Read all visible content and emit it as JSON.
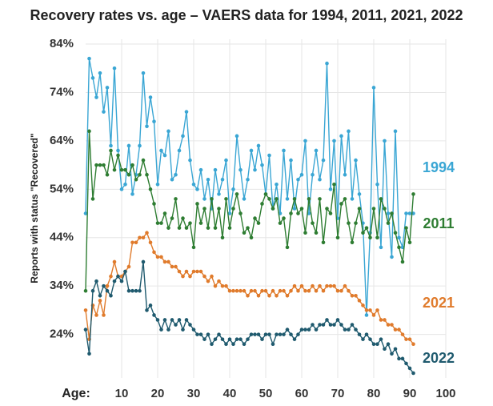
{
  "chart_data": {
    "type": "line",
    "title": "Recovery rates vs. age – VAERS data for 1994, 2011, 2021, 2022",
    "y_label": "Reports with status \"Recovered\"",
    "x_label": "Age:",
    "x": [
      0,
      1,
      2,
      3,
      4,
      5,
      6,
      7,
      8,
      9,
      10,
      11,
      12,
      13,
      14,
      15,
      16,
      17,
      18,
      19,
      20,
      21,
      22,
      23,
      24,
      25,
      26,
      27,
      28,
      29,
      30,
      31,
      32,
      33,
      34,
      35,
      36,
      37,
      38,
      39,
      40,
      41,
      42,
      43,
      44,
      45,
      46,
      47,
      48,
      49,
      50,
      51,
      52,
      53,
      54,
      55,
      56,
      57,
      58,
      59,
      60,
      61,
      62,
      63,
      64,
      65,
      66,
      67,
      68,
      69,
      70,
      71,
      72,
      73,
      74,
      75,
      76,
      77,
      78,
      79,
      80,
      81,
      82,
      83,
      84,
      85,
      86,
      87,
      88,
      89,
      90,
      91
    ],
    "series": [
      {
        "name": "1994",
        "color": "#3aa6d4",
        "values": [
          49,
          81,
          77,
          73,
          78,
          70,
          75,
          63,
          79,
          62,
          54,
          55,
          63,
          53,
          57,
          63,
          78,
          67,
          73,
          68,
          55,
          62,
          61,
          66,
          56,
          57,
          62,
          65,
          70,
          60,
          55,
          54,
          58,
          52,
          56,
          50,
          58,
          53,
          56,
          60,
          49,
          54,
          65,
          58,
          52,
          56,
          62,
          58,
          63,
          59,
          53,
          61,
          50,
          55,
          49,
          62,
          52,
          60,
          50,
          56,
          57,
          64,
          49,
          57,
          62,
          56,
          60,
          80,
          54,
          64,
          48,
          65,
          57,
          66,
          52,
          60,
          53,
          47,
          28,
          45,
          75,
          55,
          42,
          64,
          49,
          40,
          66,
          44,
          42,
          49,
          49,
          49
        ]
      },
      {
        "name": "2011",
        "color": "#2e7d32",
        "values": [
          33,
          66,
          52,
          59,
          59,
          59,
          57,
          62,
          58,
          61,
          58,
          58,
          57,
          59,
          56,
          57,
          60,
          57,
          54,
          51,
          47,
          47,
          49,
          46,
          48,
          52,
          46,
          48,
          46,
          47,
          42,
          51,
          47,
          50,
          46,
          52,
          46,
          50,
          44,
          52,
          46,
          50,
          53,
          49,
          45,
          46,
          44,
          48,
          47,
          51,
          53,
          52,
          50,
          52,
          47,
          48,
          42,
          49,
          52,
          49,
          50,
          45,
          52,
          47,
          45,
          52,
          43,
          50,
          49,
          55,
          44,
          51,
          52,
          47,
          43,
          47,
          50,
          45,
          46,
          44,
          50,
          44,
          52,
          50,
          47,
          49,
          45,
          42,
          39,
          46,
          43,
          53
        ]
      },
      {
        "name": "2021",
        "color": "#e07b2c",
        "values": [
          29,
          23,
          30,
          28,
          31,
          28,
          34,
          36,
          39,
          36,
          36,
          37,
          38,
          43,
          43,
          44,
          44,
          45,
          43,
          41,
          40,
          40,
          39,
          39,
          38,
          38,
          37,
          36,
          37,
          36,
          37,
          37,
          37,
          36,
          35,
          36,
          34,
          35,
          34,
          34,
          33,
          33,
          33,
          33,
          33,
          32,
          33,
          33,
          32,
          33,
          33,
          32,
          33,
          32,
          33,
          33,
          32,
          33,
          34,
          33,
          34,
          33,
          33,
          34,
          33,
          34,
          33,
          34,
          34,
          34,
          33,
          33,
          34,
          33,
          32,
          32,
          31,
          30,
          29,
          29,
          28,
          29,
          27,
          27,
          26,
          26,
          25,
          25,
          24,
          23,
          23,
          22
        ]
      },
      {
        "name": "2022",
        "color": "#1f5a6e",
        "values": [
          25,
          20,
          33,
          35,
          32,
          34,
          33,
          32,
          35,
          36,
          35,
          37,
          33,
          33,
          33,
          33,
          39,
          29,
          30,
          28,
          27,
          25,
          27,
          25,
          27,
          26,
          27,
          25,
          27,
          26,
          25,
          24,
          24,
          23,
          24,
          22,
          23,
          24,
          23,
          22,
          23,
          22,
          23,
          23,
          22,
          23,
          24,
          24,
          24,
          23,
          24,
          24,
          22,
          24,
          24,
          24,
          25,
          24,
          23,
          24,
          25,
          25,
          25,
          26,
          25,
          26,
          26,
          27,
          26,
          26,
          27,
          26,
          25,
          25,
          26,
          25,
          24,
          23,
          24,
          23,
          22,
          22,
          23,
          21,
          22,
          20,
          21,
          19,
          19,
          18,
          17,
          16
        ]
      }
    ],
    "xlim": [
      0,
      100
    ],
    "xticks": [
      10,
      20,
      30,
      40,
      50,
      60,
      70,
      80,
      90,
      100
    ],
    "ylim": [
      15,
      85
    ],
    "yticks": [
      {
        "value": 24,
        "label": "24%"
      },
      {
        "value": 34,
        "label": "34%"
      },
      {
        "value": 44,
        "label": "44%"
      },
      {
        "value": 54,
        "label": "54%"
      },
      {
        "value": 64,
        "label": "64%"
      },
      {
        "value": 74,
        "label": "74%"
      },
      {
        "value": 84,
        "label": "84%"
      }
    ],
    "grid": true
  }
}
